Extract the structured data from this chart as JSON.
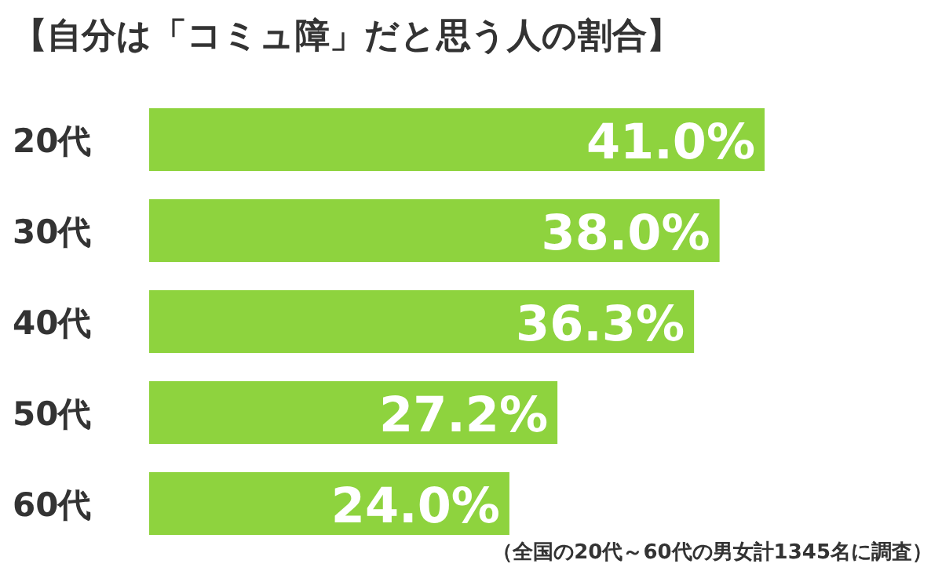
{
  "chart_data": {
    "type": "bar",
    "orientation": "horizontal",
    "title": "【自分は「コミュ障」だと思う人の割合】",
    "categories": [
      "20代",
      "30代",
      "40代",
      "50代",
      "60代"
    ],
    "values": [
      41.0,
      38.0,
      36.3,
      27.2,
      24.0
    ],
    "value_labels": [
      "41.0%",
      "38.0%",
      "36.3%",
      "27.2%",
      "24.0%"
    ],
    "color": "#8ed33e",
    "annotations": [
      "（全国の20代～60代の男女計1345名に調査）"
    ]
  }
}
